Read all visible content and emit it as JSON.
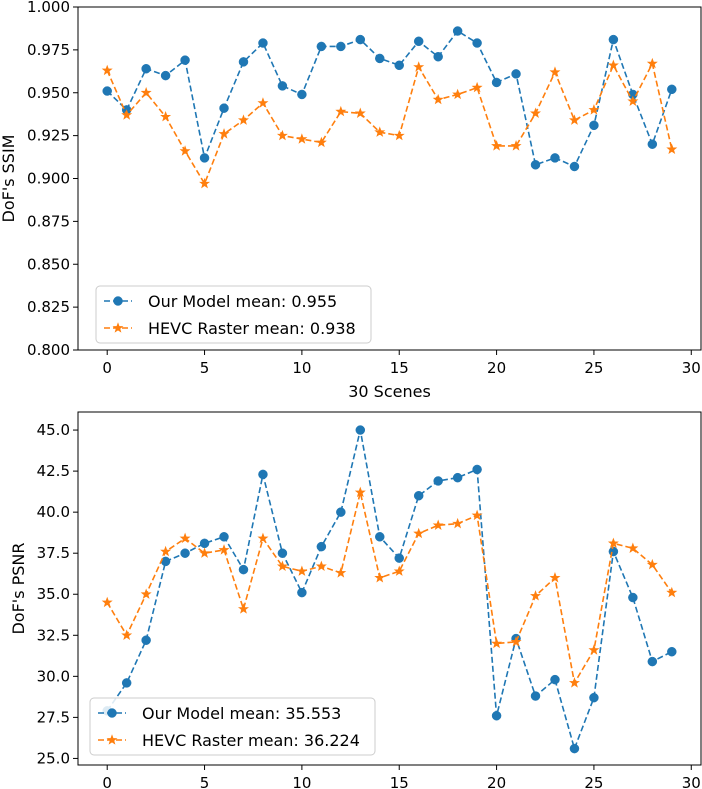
{
  "chart_data": [
    {
      "type": "line",
      "id": "ssim",
      "title": "",
      "xlabel": "30 Scenes",
      "ylabel": "DoF's SSIM",
      "xlim": [
        -1.5,
        30.5
      ],
      "ylim": [
        0.8,
        1.0
      ],
      "xticks": [
        0,
        5,
        10,
        15,
        20,
        25,
        30
      ],
      "xtick_labels": [
        "0",
        "5",
        "10",
        "15",
        "20",
        "25",
        "30"
      ],
      "yticks": [
        0.8,
        0.825,
        0.85,
        0.875,
        0.9,
        0.925,
        0.95,
        0.975,
        1.0
      ],
      "ytick_labels": [
        "0.800",
        "0.825",
        "0.850",
        "0.875",
        "0.900",
        "0.925",
        "0.950",
        "0.975",
        "1.000"
      ],
      "legend_position": "lower-left",
      "x": [
        0,
        1,
        2,
        3,
        4,
        5,
        6,
        7,
        8,
        9,
        10,
        11,
        12,
        13,
        14,
        15,
        16,
        17,
        18,
        19,
        20,
        21,
        22,
        23,
        24,
        25,
        26,
        27,
        28,
        29
      ],
      "series": [
        {
          "name": "Our Model mean: 0.955",
          "color": "#1f77b4",
          "marker": "circle",
          "values": [
            0.951,
            0.94,
            0.964,
            0.96,
            0.969,
            0.912,
            0.941,
            0.968,
            0.979,
            0.954,
            0.949,
            0.977,
            0.977,
            0.981,
            0.97,
            0.966,
            0.98,
            0.971,
            0.986,
            0.979,
            0.956,
            0.961,
            0.908,
            0.912,
            0.907,
            0.931,
            0.981,
            0.949,
            0.92,
            0.952
          ]
        },
        {
          "name": "HEVC Raster mean: 0.938",
          "color": "#ff7f0e",
          "marker": "star",
          "values": [
            0.963,
            0.937,
            0.95,
            0.936,
            0.916,
            0.897,
            0.926,
            0.934,
            0.944,
            0.925,
            0.923,
            0.921,
            0.939,
            0.938,
            0.927,
            0.925,
            0.965,
            0.946,
            0.949,
            0.953,
            0.919,
            0.919,
            0.938,
            0.962,
            0.934,
            0.94,
            0.966,
            0.945,
            0.967,
            0.917
          ]
        }
      ]
    },
    {
      "type": "line",
      "id": "psnr",
      "title": "",
      "xlabel": "",
      "ylabel": "DoF's PSNR",
      "xlim": [
        -1.5,
        30.5
      ],
      "ylim": [
        24.6,
        46.1
      ],
      "xticks": [
        0,
        5,
        10,
        15,
        20,
        25,
        30
      ],
      "xtick_labels": [
        "0",
        "5",
        "10",
        "15",
        "20",
        "25",
        "30"
      ],
      "yticks": [
        25.0,
        27.5,
        30.0,
        32.5,
        35.0,
        37.5,
        40.0,
        42.5,
        45.0
      ],
      "ytick_labels": [
        "25.0",
        "27.5",
        "30.0",
        "32.5",
        "35.0",
        "37.5",
        "40.0",
        "42.5",
        "45.0"
      ],
      "legend_position": "lower-left",
      "x": [
        0,
        1,
        2,
        3,
        4,
        5,
        6,
        7,
        8,
        9,
        10,
        11,
        12,
        13,
        14,
        15,
        16,
        17,
        18,
        19,
        20,
        21,
        22,
        23,
        24,
        25,
        26,
        27,
        28,
        29
      ],
      "series": [
        {
          "name": "Our Model mean: 35.553",
          "color": "#1f77b4",
          "marker": "circle",
          "values": [
            27.9,
            29.6,
            32.2,
            37.0,
            37.5,
            38.1,
            38.5,
            36.5,
            42.3,
            37.5,
            35.1,
            37.9,
            40.0,
            45.0,
            38.5,
            37.2,
            41.0,
            41.9,
            42.1,
            42.6,
            27.6,
            32.3,
            28.8,
            29.8,
            25.6,
            28.7,
            37.6,
            34.8,
            30.9,
            31.5
          ]
        },
        {
          "name": "HEVC Raster mean: 36.224",
          "color": "#ff7f0e",
          "marker": "star",
          "values": [
            34.5,
            32.5,
            35.0,
            37.6,
            38.4,
            37.5,
            37.7,
            34.1,
            38.4,
            36.7,
            36.4,
            36.7,
            36.3,
            41.2,
            36.0,
            36.4,
            38.7,
            39.2,
            39.3,
            39.8,
            32.0,
            32.1,
            34.9,
            36.0,
            29.6,
            31.6,
            38.1,
            37.8,
            36.8,
            35.1
          ]
        }
      ]
    }
  ]
}
